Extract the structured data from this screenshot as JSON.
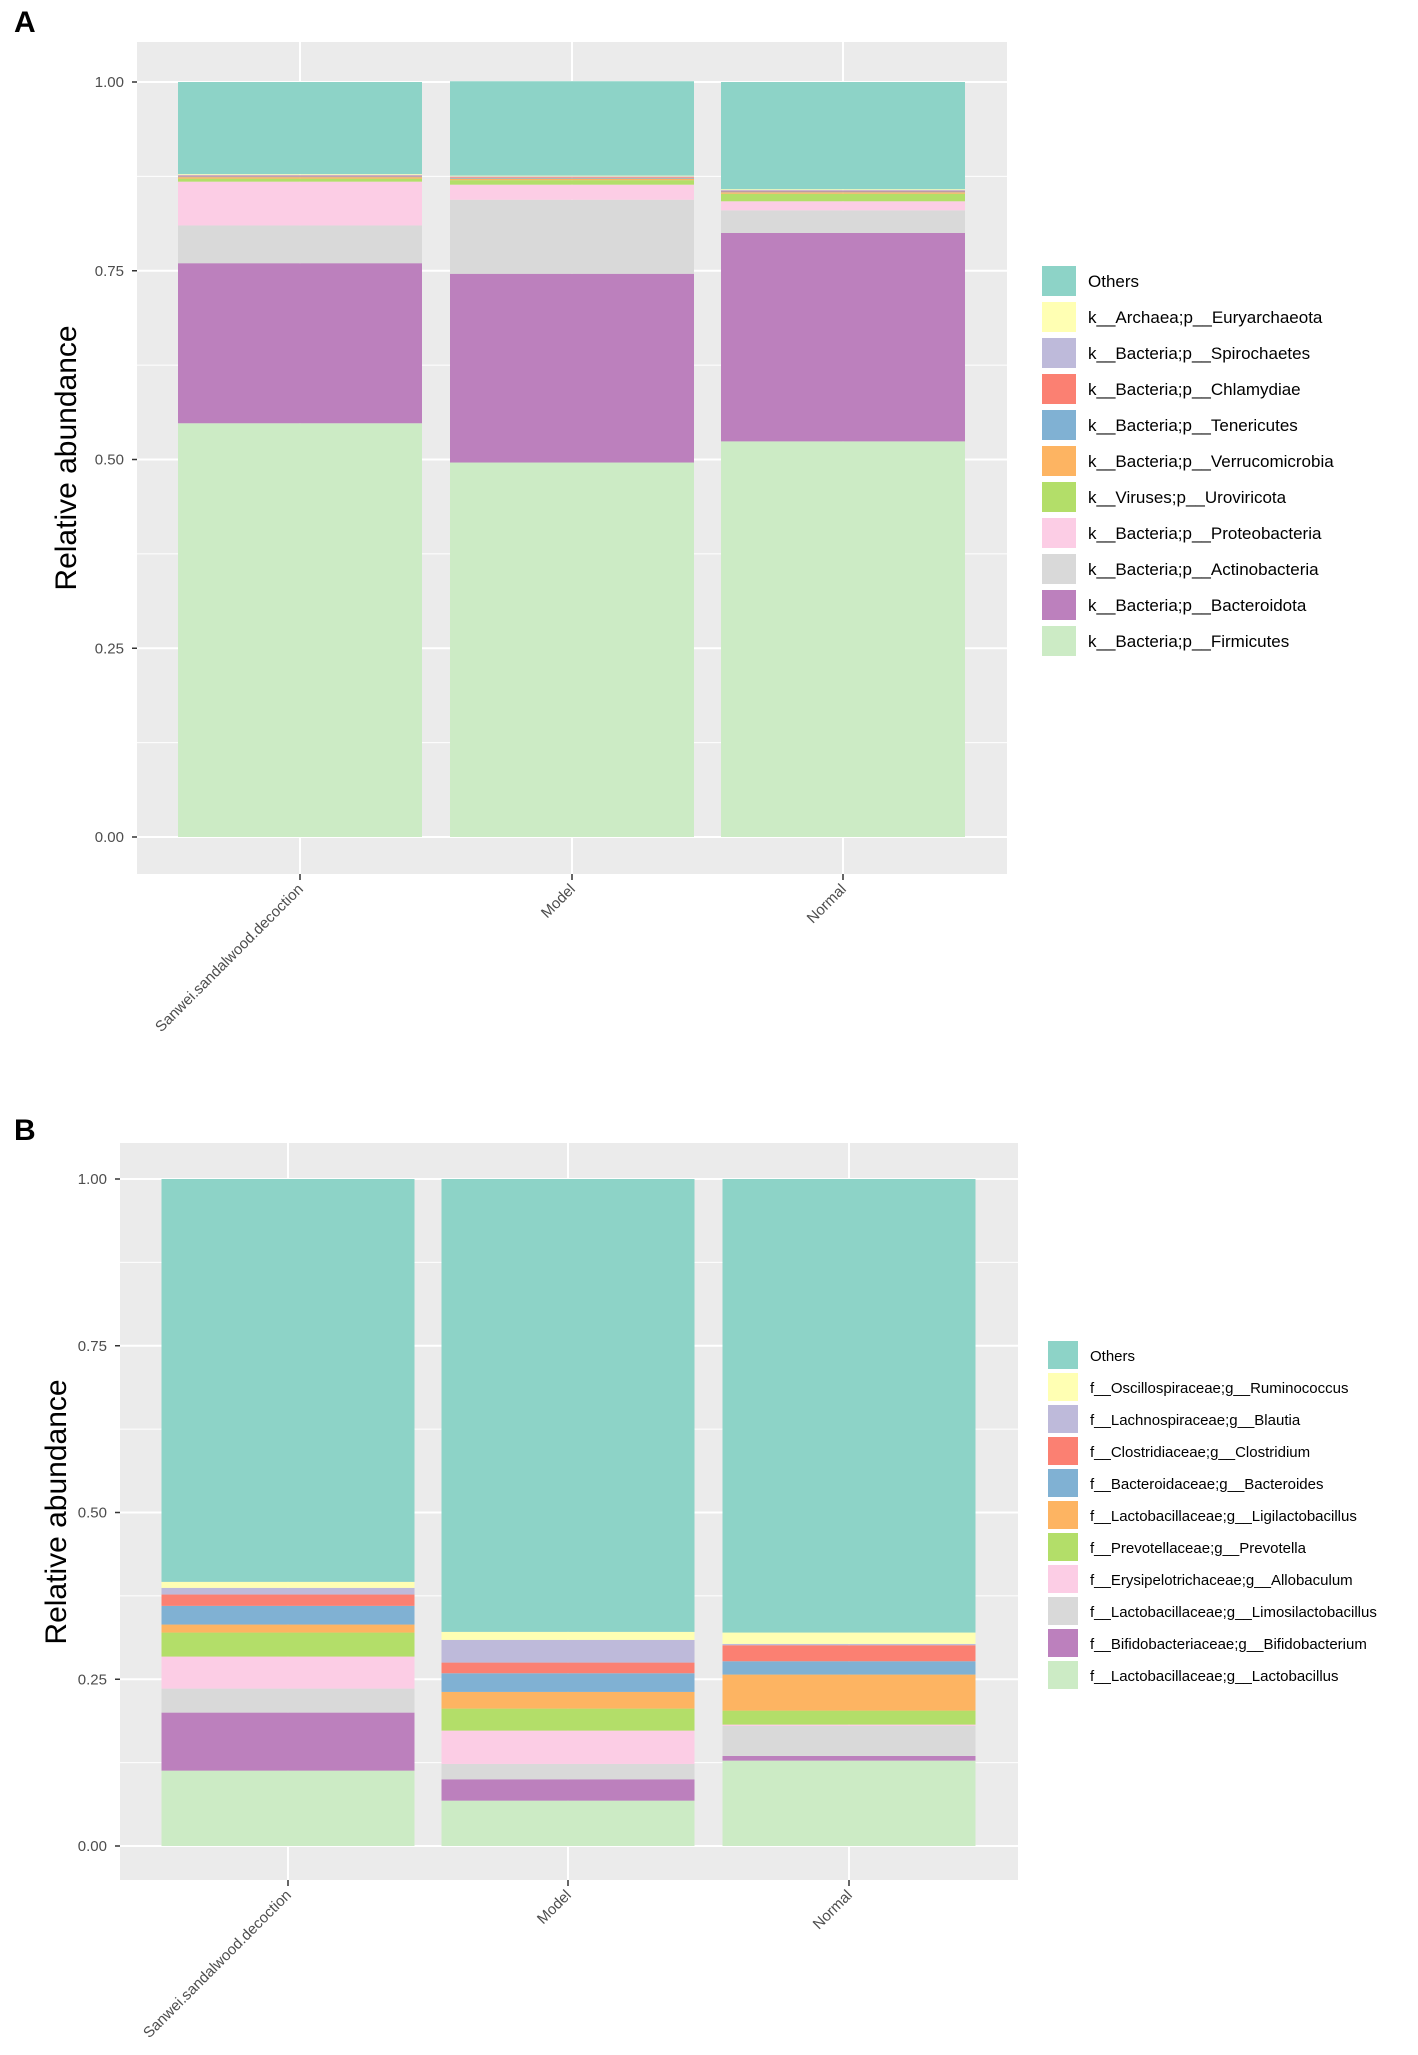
{
  "colors": {
    "Others": "#8dd3c7",
    "c1": "#ffffb3",
    "c2": "#bebada",
    "c3": "#fb8072",
    "c4": "#80b1d3",
    "c5": "#fdb462",
    "c6": "#b3de69",
    "c7": "#fccde5",
    "c8": "#d9d9d9",
    "c9": "#bc80bd",
    "c10": "#ccebc5",
    "panel_bg": "#ebebeb",
    "grid": "#ffffff"
  },
  "chart_data": [
    {
      "panel": "A",
      "type": "bar",
      "stacked": true,
      "ylabel": "Relative abundance",
      "xlabel": "",
      "ylim": [
        0,
        1
      ],
      "yticks": [
        "0.00",
        "0.25",
        "0.50",
        "0.75",
        "1.00"
      ],
      "categories": [
        "Sanwei.sandalwood.decoction",
        "Model",
        "Normal"
      ],
      "legend_position": "right",
      "legend": [
        "Others",
        "k__Archaea;p__Euryarchaeota",
        "k__Bacteria;p__Spirochaetes",
        "k__Bacteria;p__Chlamydiae",
        "k__Bacteria;p__Tenericutes",
        "k__Bacteria;p__Verrucomicrobia",
        "k__Viruses;p__Uroviricota",
        "k__Bacteria;p__Proteobacteria",
        "k__Bacteria;p__Actinobacteria",
        "k__Bacteria;p__Bacteroidota",
        "k__Bacteria;p__Firmicutes"
      ],
      "series": [
        {
          "name": "k__Bacteria;p__Firmicutes",
          "color_key": "c10",
          "values": [
            0.548,
            0.496,
            0.524
          ]
        },
        {
          "name": "k__Bacteria;p__Bacteroidota",
          "color_key": "c9",
          "values": [
            0.212,
            0.25,
            0.276
          ]
        },
        {
          "name": "k__Bacteria;p__Actinobacteria",
          "color_key": "c8",
          "values": [
            0.05,
            0.098,
            0.03
          ]
        },
        {
          "name": "k__Bacteria;p__Proteobacteria",
          "color_key": "c7",
          "values": [
            0.058,
            0.02,
            0.012
          ]
        },
        {
          "name": "k__Viruses;p__Uroviricota",
          "color_key": "c6",
          "values": [
            0.004,
            0.006,
            0.01
          ]
        },
        {
          "name": "k__Bacteria;p__Verrucomicrobia",
          "color_key": "c5",
          "values": [
            0.002,
            0.002,
            0.002
          ]
        },
        {
          "name": "k__Bacteria;p__Tenericutes",
          "color_key": "c4",
          "values": [
            0.001,
            0.001,
            0.001
          ]
        },
        {
          "name": "k__Bacteria;p__Chlamydiae",
          "color_key": "c3",
          "values": [
            0.001,
            0.001,
            0.001
          ]
        },
        {
          "name": "k__Bacteria;p__Spirochaetes",
          "color_key": "c2",
          "values": [
            0.001,
            0.001,
            0.001
          ]
        },
        {
          "name": "k__Archaea;p__Euryarchaeota",
          "color_key": "c1",
          "values": [
            0.001,
            0.001,
            0.001
          ]
        },
        {
          "name": "Others",
          "color_key": "Others",
          "values": [
            0.122,
            0.125,
            0.142
          ]
        }
      ]
    },
    {
      "panel": "B",
      "type": "bar",
      "stacked": true,
      "ylabel": "Relative abundance",
      "xlabel": "",
      "ylim": [
        0,
        1
      ],
      "yticks": [
        "0.00",
        "0.25",
        "0.50",
        "0.75",
        "1.00"
      ],
      "categories": [
        "Sanwei.sandalwood.decoction",
        "Model",
        "Normal"
      ],
      "legend_position": "right",
      "legend": [
        "Others",
        "f__Oscillospiraceae;g__Ruminococcus",
        "f__Lachnospiraceae;g__Blautia",
        "f__Clostridiaceae;g__Clostridium",
        "f__Bacteroidaceae;g__Bacteroides",
        "f__Lactobacillaceae;g__Ligilactobacillus",
        "f__Prevotellaceae;g__Prevotella",
        "f__Erysipelotrichaceae;g__Allobaculum",
        "f__Lactobacillaceae;g__Limosilactobacillus",
        "f__Bifidobacteriaceae;g__Bifidobacterium",
        "f__Lactobacillaceae;g__Lactobacillus"
      ],
      "series": [
        {
          "name": "f__Lactobacillaceae;g__Lactobacillus",
          "color_key": "c10",
          "values": [
            0.113,
            0.068,
            0.128
          ]
        },
        {
          "name": "f__Bifidobacteriaceae;g__Bifidobacterium",
          "color_key": "c9",
          "values": [
            0.087,
            0.032,
            0.007
          ]
        },
        {
          "name": "f__Lactobacillaceae;g__Limosilactobacillus",
          "color_key": "c8",
          "values": [
            0.036,
            0.023,
            0.045
          ]
        },
        {
          "name": "f__Erysipelotrichaceae;g__Allobaculum",
          "color_key": "c7",
          "values": [
            0.048,
            0.05,
            0.002
          ]
        },
        {
          "name": "f__Prevotellaceae;g__Prevotella",
          "color_key": "c6",
          "values": [
            0.036,
            0.033,
            0.021
          ]
        },
        {
          "name": "f__Lactobacillaceae;g__Ligilactobacillus",
          "color_key": "c5",
          "values": [
            0.012,
            0.025,
            0.054
          ]
        },
        {
          "name": "f__Bacteroidaceae;g__Bacteroides",
          "color_key": "c4",
          "values": [
            0.028,
            0.028,
            0.02
          ]
        },
        {
          "name": "f__Clostridiaceae;g__Clostridium",
          "color_key": "c3",
          "values": [
            0.017,
            0.016,
            0.024
          ]
        },
        {
          "name": "f__Lachnospiraceae;g__Blautia",
          "color_key": "c2",
          "values": [
            0.01,
            0.034,
            0.002
          ]
        },
        {
          "name": "f__Oscillospiraceae;g__Ruminococcus",
          "color_key": "c1",
          "values": [
            0.009,
            0.012,
            0.017
          ]
        },
        {
          "name": "Others",
          "color_key": "Others",
          "values": [
            0.604,
            0.679,
            0.68
          ]
        }
      ]
    }
  ]
}
